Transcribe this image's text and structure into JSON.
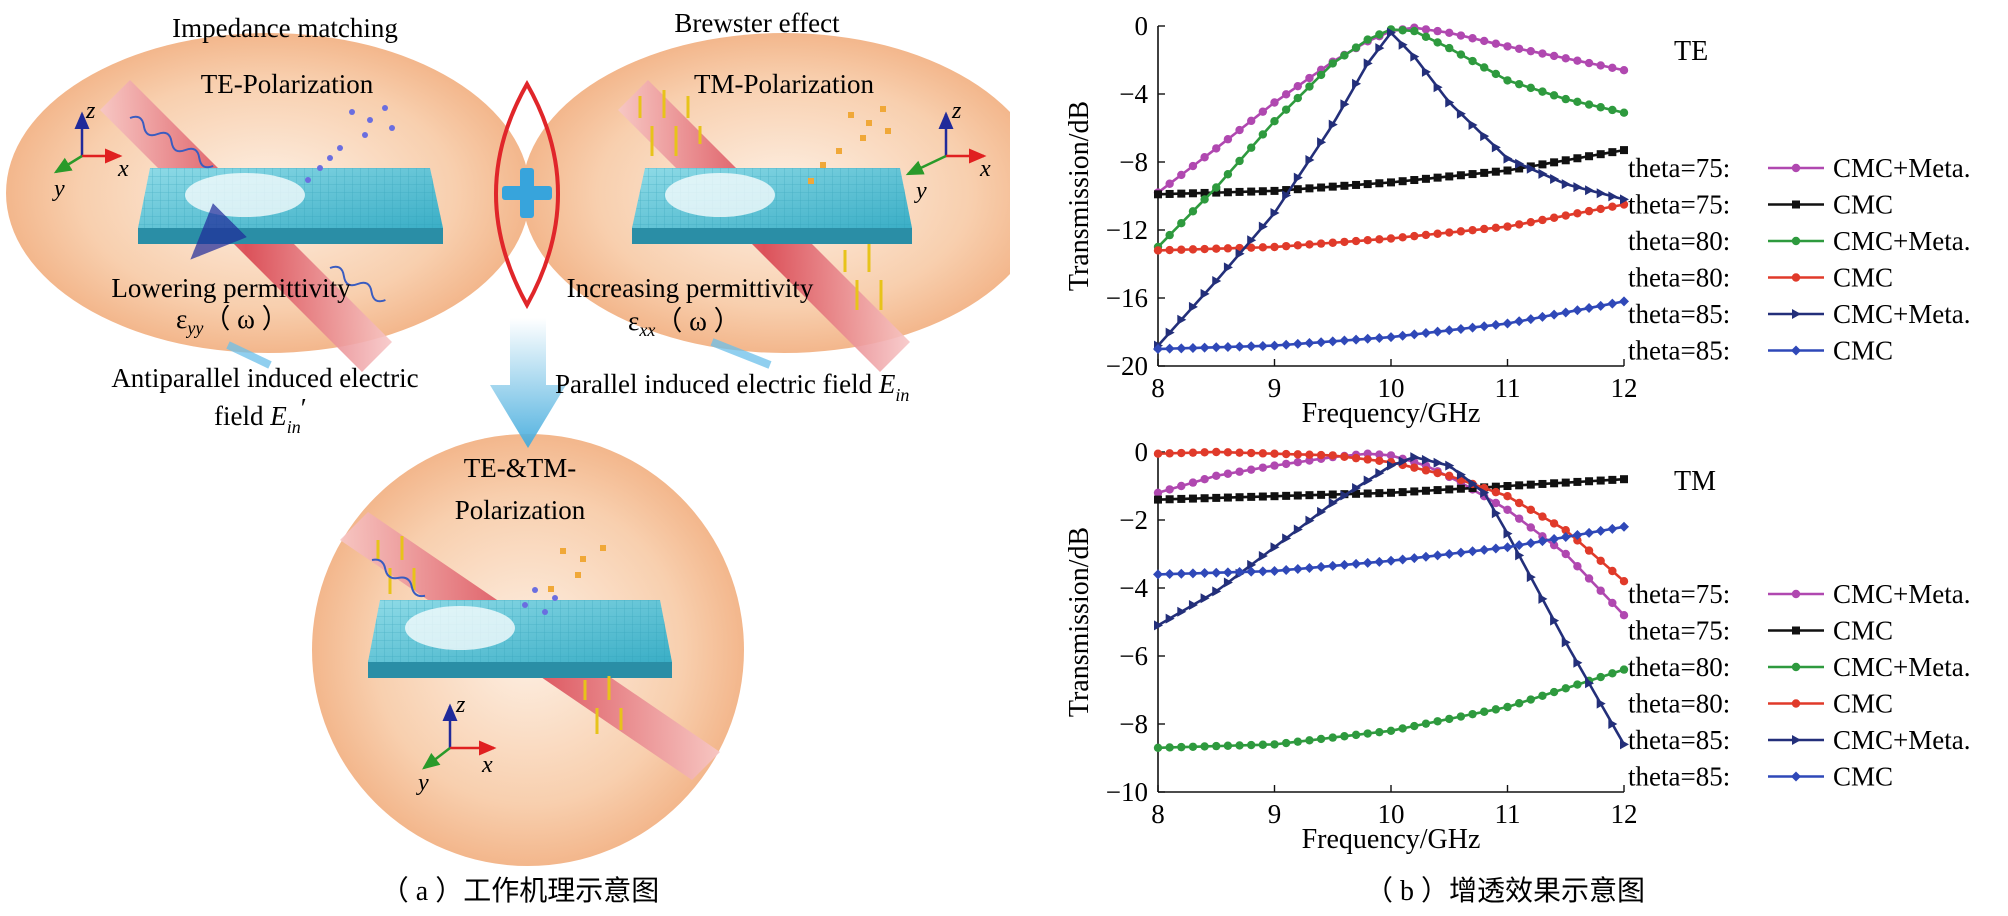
{
  "panel_a": {
    "left": {
      "title": "Impedance matching",
      "polarization": "TE-Polarization",
      "permittivity_label": "Lowering permittivity",
      "eps_symbol": "ε",
      "eps_sub": "yy",
      "eps_arg": "（ ω ）",
      "field_text_1": "Antiparallel induced electric",
      "field_text_2": "field ",
      "field_symbol": "E",
      "field_sub": "in",
      "field_prime": "′"
    },
    "right": {
      "title": "Brewster effect",
      "polarization": "TM-Polarization",
      "permittivity_label": "Increasing permittivity",
      "eps_symbol": "ε",
      "eps_sub": "xx",
      "eps_arg": "（ ω ）",
      "field_text": "Parallel induced electric field ",
      "field_symbol": "E",
      "field_sub": "in"
    },
    "bottom": {
      "polarization_1": "TE-&TM-",
      "polarization_2": "Polarization"
    },
    "axes_labels": {
      "x": "x",
      "y": "y",
      "z": "z"
    },
    "caption": "（ a ）工作机理示意图",
    "colors": {
      "ellipse": "#f4b98f",
      "slab": "#5cc0d3",
      "beam": "#e0505a",
      "plus": "#37a4dc",
      "lens": "#e03030"
    }
  },
  "panel_b": {
    "caption": "（ b ）增透效果示意图"
  },
  "chart_data": [
    {
      "type": "line",
      "title": "TE",
      "xlabel": "Frequency/GHz",
      "ylabel": "Transmission/dB",
      "xlim": [
        8,
        12
      ],
      "ylim": [
        -20,
        0
      ],
      "xticks": [
        8,
        9,
        10,
        11,
        12
      ],
      "xtick_labels": [
        "8",
        "9",
        "10",
        "11",
        "12"
      ],
      "yticks": [
        0,
        -4,
        -8,
        -12,
        -16,
        -20
      ],
      "ytick_labels": [
        "0",
        "−4",
        "−8",
        "−12",
        "−16",
        "−20"
      ],
      "legend_position": "right",
      "series": [
        {
          "name": "CMC+Meta.",
          "prefix": "theta=75:",
          "color": "#b048b0",
          "marker": "circle",
          "x": [
            8,
            8.5,
            9,
            9.5,
            9.8,
            10,
            10.2,
            10.5,
            11,
            11.5,
            12
          ],
          "y": [
            -9.8,
            -7.2,
            -4.5,
            -2.1,
            -0.9,
            -0.3,
            -0.1,
            -0.4,
            -1.2,
            -1.9,
            -2.6
          ]
        },
        {
          "name": "CMC",
          "prefix": "theta=75:",
          "color": "#111111",
          "marker": "square",
          "x": [
            8,
            9,
            10,
            11,
            12
          ],
          "y": [
            -9.9,
            -9.7,
            -9.2,
            -8.5,
            -7.3
          ]
        },
        {
          "name": "CMC+Meta.",
          "prefix": "theta=80:",
          "color": "#2e9a3e",
          "marker": "circle",
          "x": [
            8,
            8.5,
            9,
            9.5,
            9.8,
            10,
            10.2,
            10.5,
            11,
            11.5,
            12
          ],
          "y": [
            -13,
            -9.5,
            -5.6,
            -2.2,
            -0.8,
            -0.2,
            -0.3,
            -1.3,
            -3.2,
            -4.3,
            -5.1
          ]
        },
        {
          "name": "CMC",
          "prefix": "theta=80:",
          "color": "#e03a2a",
          "marker": "circle",
          "x": [
            8,
            9,
            10,
            11,
            12
          ],
          "y": [
            -13.2,
            -13,
            -12.5,
            -11.8,
            -10.5
          ]
        },
        {
          "name": "CMC+Meta.",
          "prefix": "theta=85:",
          "color": "#232f7a",
          "marker": "triangle",
          "x": [
            8,
            8.5,
            9,
            9.5,
            9.8,
            10,
            10.2,
            10.5,
            11,
            11.5,
            12
          ],
          "y": [
            -18.8,
            -15,
            -11,
            -5.8,
            -2.2,
            -0.4,
            -1.8,
            -4.5,
            -7.8,
            -9.3,
            -10.2
          ]
        },
        {
          "name": "CMC",
          "prefix": "theta=85:",
          "color": "#2f48b8",
          "marker": "diamond",
          "x": [
            8,
            9,
            10,
            11,
            12
          ],
          "y": [
            -19,
            -18.8,
            -18.3,
            -17.5,
            -16.2
          ]
        }
      ]
    },
    {
      "type": "line",
      "title": "TM",
      "xlabel": "Frequency/GHz",
      "ylabel": "Transmission/dB",
      "xlim": [
        8,
        12
      ],
      "ylim": [
        -10,
        0
      ],
      "xticks": [
        8,
        9,
        10,
        11,
        12
      ],
      "xtick_labels": [
        "8",
        "9",
        "10",
        "11",
        "12"
      ],
      "yticks": [
        0,
        -2,
        -4,
        -6,
        -8,
        -10
      ],
      "ytick_labels": [
        "0",
        "−2",
        "−4",
        "−6",
        "−8",
        "−10"
      ],
      "legend_position": "right",
      "series": [
        {
          "name": "CMC+Meta.",
          "prefix": "theta=75:",
          "color": "#b048b0",
          "marker": "circle",
          "x": [
            8,
            8.5,
            9,
            9.5,
            9.8,
            10,
            10.3,
            10.6,
            11,
            11.5,
            12
          ],
          "y": [
            -1.2,
            -0.7,
            -0.4,
            -0.15,
            -0.05,
            -0.1,
            -0.4,
            -0.9,
            -1.7,
            -3.0,
            -4.8
          ]
        },
        {
          "name": "CMC",
          "prefix": "theta=75:",
          "color": "#111111",
          "marker": "square",
          "x": [
            8,
            9,
            10,
            11,
            12
          ],
          "y": [
            -1.4,
            -1.3,
            -1.2,
            -1.0,
            -0.8
          ]
        },
        {
          "name": "CMC+Meta.",
          "prefix": "theta=80:",
          "color": "#2e9a3e",
          "marker": "circle",
          "x": [
            8,
            9,
            10,
            11,
            12
          ],
          "y": [
            -8.7,
            -8.6,
            -8.2,
            -7.5,
            -6.4
          ]
        },
        {
          "name": "CMC",
          "prefix": "theta=80:",
          "color": "#e03a2a",
          "marker": "circle",
          "x": [
            8,
            8.5,
            9,
            9.5,
            10,
            10.5,
            11,
            11.5,
            12
          ],
          "y": [
            -0.05,
            0,
            -0.05,
            -0.1,
            -0.3,
            -0.7,
            -1.3,
            -2.3,
            -3.8
          ]
        },
        {
          "name": "CMC+Meta.",
          "prefix": "theta=85:",
          "color": "#232f7a",
          "marker": "triangle",
          "x": [
            8,
            8.5,
            9,
            9.5,
            10,
            10.2,
            10.5,
            10.8,
            11,
            11.5,
            12
          ],
          "y": [
            -5.1,
            -4.1,
            -2.8,
            -1.5,
            -0.4,
            -0.15,
            -0.4,
            -1.2,
            -2.4,
            -5.6,
            -8.6
          ]
        },
        {
          "name": "CMC",
          "prefix": "theta=85:",
          "color": "#2f48b8",
          "marker": "diamond",
          "x": [
            8,
            9,
            10,
            11,
            12
          ],
          "y": [
            -3.6,
            -3.5,
            -3.2,
            -2.8,
            -2.2
          ]
        }
      ]
    }
  ]
}
